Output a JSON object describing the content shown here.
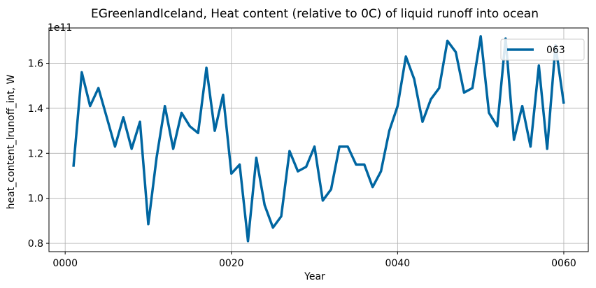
{
  "chart_data": {
    "type": "line",
    "title": "EGreenlandIceland, Heat content (relative to 0C) of liquid runoff into ocean",
    "xlabel": "Year",
    "ylabel": "heat_content_lrunoff_int, W",
    "offset_text": "1e11",
    "xlim": [
      -1.95,
      62.95
    ],
    "ylim": [
      0.763,
      1.757
    ],
    "x_ticks": [
      0,
      20,
      40,
      60
    ],
    "x_tick_labels": [
      "0000",
      "0020",
      "0040",
      "0060"
    ],
    "y_ticks": [
      0.8,
      1.0,
      1.2,
      1.4,
      1.6
    ],
    "y_tick_labels": [
      "0.8",
      "1.0",
      "1.2",
      "1.4",
      "1.6"
    ],
    "grid": true,
    "legend_position": "top-right",
    "series": [
      {
        "name": "063",
        "color": "#0066a1",
        "x": [
          1,
          2,
          3,
          4,
          5,
          6,
          7,
          8,
          9,
          10,
          11,
          12,
          13,
          14,
          15,
          16,
          17,
          18,
          19,
          20,
          21,
          22,
          23,
          24,
          25,
          26,
          27,
          28,
          29,
          30,
          31,
          32,
          33,
          34,
          35,
          36,
          37,
          38,
          39,
          40,
          41,
          42,
          43,
          44,
          45,
          46,
          47,
          48,
          49,
          50,
          51,
          52,
          53,
          54,
          55,
          56,
          57,
          58,
          59,
          60
        ],
        "values": [
          1.14,
          1.56,
          1.41,
          1.49,
          1.36,
          1.23,
          1.36,
          1.22,
          1.34,
          0.885,
          1.18,
          1.41,
          1.22,
          1.38,
          1.32,
          1.29,
          1.58,
          1.3,
          1.46,
          1.11,
          1.15,
          0.81,
          1.18,
          0.97,
          0.87,
          0.92,
          1.21,
          1.12,
          1.14,
          1.23,
          0.99,
          1.04,
          1.23,
          1.23,
          1.15,
          1.15,
          1.05,
          1.12,
          1.3,
          1.41,
          1.63,
          1.53,
          1.34,
          1.44,
          1.49,
          1.7,
          1.65,
          1.47,
          1.49,
          1.72,
          1.38,
          1.32,
          1.71,
          1.26,
          1.41,
          1.23,
          1.59,
          1.22,
          1.68,
          1.42
        ]
      }
    ]
  }
}
